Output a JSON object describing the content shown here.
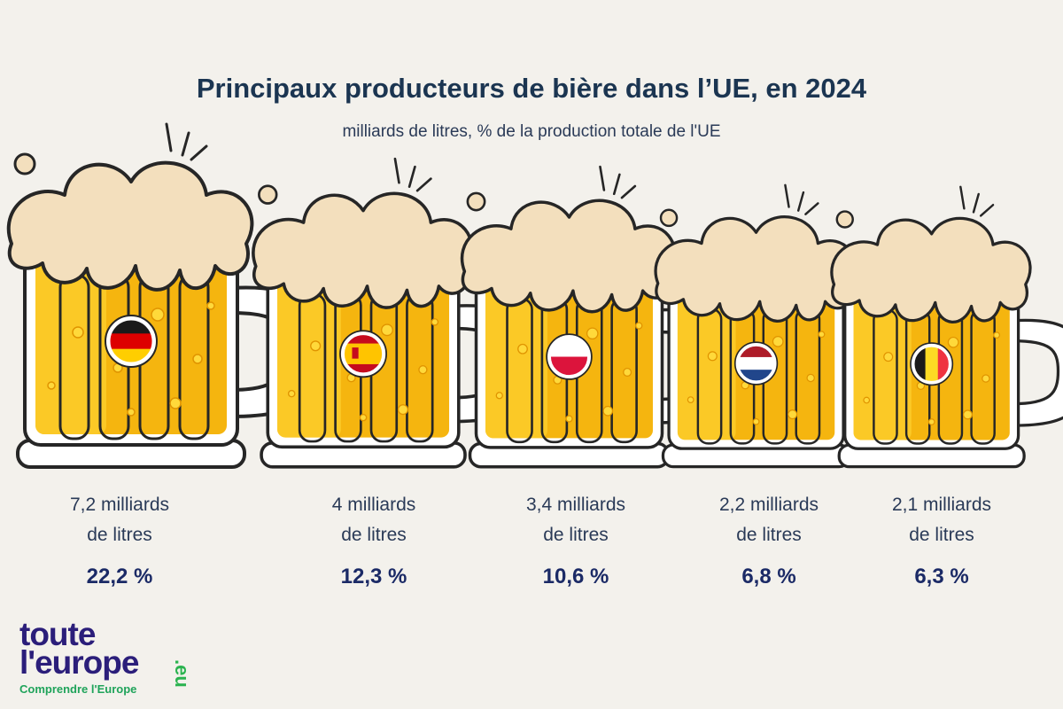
{
  "chart_data": {
    "type": "bar",
    "title": "Principaux producteurs de bière dans l’UE, en 2024",
    "subtitle": "milliards de litres, % de la production totale de l'UE",
    "categories": [
      "Allemagne",
      "Espagne",
      "Pologne",
      "Pays-Bas",
      "Belgique"
    ],
    "values": [
      7.2,
      4.0,
      3.4,
      2.2,
      2.1
    ],
    "shares_pct": [
      22.2,
      12.3,
      10.6,
      6.8,
      6.3
    ],
    "volume_labels": [
      [
        "7,2 milliards",
        "de litres"
      ],
      [
        "4 milliards",
        "de litres"
      ],
      [
        "3,4 milliards",
        "de litres"
      ],
      [
        "2,2 milliards",
        "de litres"
      ],
      [
        "2,1 milliards",
        "de litres"
      ]
    ],
    "share_labels": [
      "22,2 %",
      "12,3 %",
      "10,6 %",
      "6,8 %",
      "6,3 %"
    ],
    "flags": [
      [
        "#1a1a1a",
        "#dd0000",
        "#ffce00"
      ],
      [
        "#c60b1e",
        "#ffc400",
        "#c60b1e"
      ],
      [
        "#ffffff",
        "#dc143c"
      ],
      [
        "#ae1c28",
        "#ffffff",
        "#21468b"
      ],
      [
        "#1a1a1a",
        "#fdda24",
        "#ef3340"
      ]
    ],
    "flag_orientation": [
      "horizontal",
      "horizontal",
      "horizontal",
      "horizontal",
      "vertical"
    ],
    "mark": "beer-mug"
  },
  "colors": {
    "background": "#f3f1ec",
    "beer": "#f5b50f",
    "beer_light": "#ffd93a",
    "foam": "#f3dfbd",
    "glass": "#ffffff",
    "outline": "#262626",
    "title": "#1b3551",
    "share": "#1b2a66"
  },
  "logo": {
    "line1": "toute",
    "line2": "l'europe",
    "suffix": ".eu",
    "tagline": "Comprendre l'Europe"
  }
}
